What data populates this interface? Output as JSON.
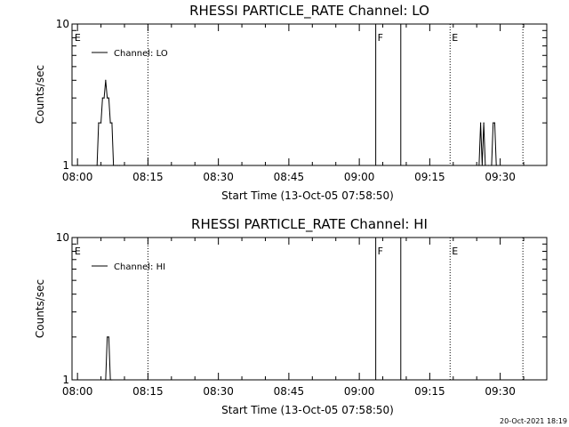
{
  "chart_data": [
    {
      "type": "line",
      "title": "RHESSI PARTICLE_RATE Channel: LO",
      "xlabel": "Start Time (13-Oct-05 07:58:50)",
      "ylabel": "Counts/sec",
      "yscale": "log",
      "ylim": [
        1,
        10
      ],
      "y_ticks": [
        {
          "v": 1,
          "label": "1"
        },
        {
          "v": 10,
          "label": "10"
        }
      ],
      "x_ticks": [
        "08:00",
        "08:15",
        "08:30",
        "08:45",
        "09:00",
        "09:15",
        "09:30"
      ],
      "legend": {
        "entry": "Channel: LO",
        "position": "top-left"
      },
      "event_markers": [
        {
          "time": "07:59:00",
          "label": "E",
          "style": "none"
        },
        {
          "time": "08:15:00",
          "label": "",
          "style": "dotted"
        },
        {
          "time": "09:03:30",
          "label": "F",
          "style": "solid"
        },
        {
          "time": "09:08:50",
          "label": "",
          "style": "solid"
        },
        {
          "time": "09:19:20",
          "label": "E",
          "style": "dotted"
        },
        {
          "time": "09:34:50",
          "label": "",
          "style": "dotted"
        }
      ],
      "series": [
        {
          "x": [
            "08:04:10",
            "08:04:30",
            "08:05:00",
            "08:05:20",
            "08:05:40",
            "08:06:00",
            "08:06:20",
            "08:06:40",
            "08:07:00",
            "08:07:20",
            "08:07:40",
            "08:08:00",
            "08:08:20",
            "08:08:40",
            "08:09:00",
            "09:25:30",
            "09:25:50",
            "09:26:10",
            "09:26:30",
            "09:26:50",
            "09:27:30",
            "09:28:10",
            "09:28:30",
            "09:28:50",
            "09:29:10",
            "09:29:30"
          ],
          "values": [
            1,
            2,
            2,
            3,
            3,
            4,
            3,
            3,
            2,
            2,
            1,
            1,
            1,
            1,
            1,
            1,
            2,
            1,
            2,
            1,
            1,
            1,
            2,
            2,
            1,
            1
          ]
        }
      ]
    },
    {
      "type": "line",
      "title": "RHESSI PARTICLE_RATE Channel: HI",
      "xlabel": "Start Time (13-Oct-05 07:58:50)",
      "ylabel": "Counts/sec",
      "yscale": "log",
      "ylim": [
        1,
        10
      ],
      "y_ticks": [
        {
          "v": 1,
          "label": "1"
        },
        {
          "v": 10,
          "label": "10"
        }
      ],
      "x_ticks": [
        "08:00",
        "08:15",
        "08:30",
        "08:45",
        "09:00",
        "09:15",
        "09:30"
      ],
      "legend": {
        "entry": "Channel: HI",
        "position": "top-left"
      },
      "event_markers": [
        {
          "time": "07:59:00",
          "label": "E",
          "style": "none"
        },
        {
          "time": "08:15:00",
          "label": "",
          "style": "dotted"
        },
        {
          "time": "09:03:30",
          "label": "F",
          "style": "solid"
        },
        {
          "time": "09:08:50",
          "label": "",
          "style": "solid"
        },
        {
          "time": "09:19:20",
          "label": "E",
          "style": "dotted"
        },
        {
          "time": "09:34:50",
          "label": "",
          "style": "dotted"
        }
      ],
      "series": [
        {
          "x": [
            "08:06:00",
            "08:06:20",
            "08:06:40",
            "08:07:00",
            "08:07:20"
          ],
          "values": [
            1,
            2,
            2,
            1,
            1
          ]
        }
      ]
    }
  ],
  "timestamp": "20-Oct-2021 18:19"
}
